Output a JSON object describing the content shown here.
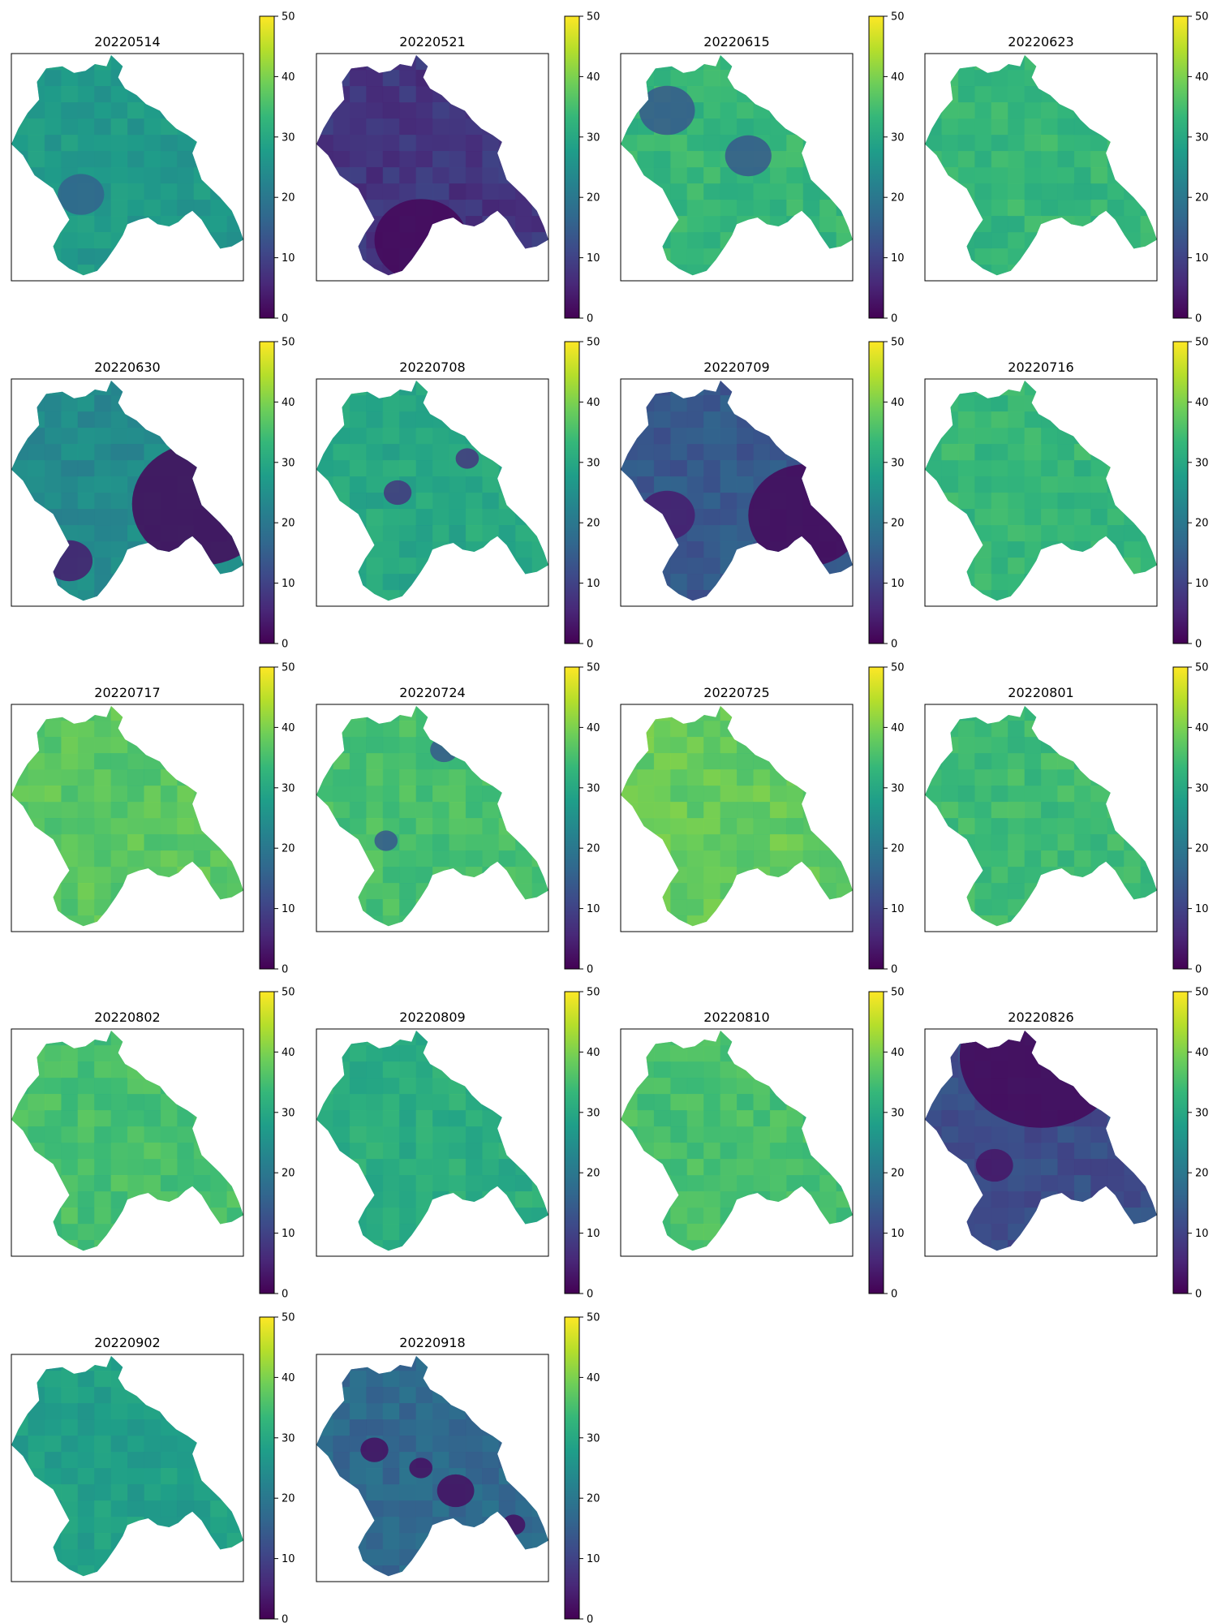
{
  "figure": {
    "colormap": "viridis",
    "colormap_stops": [
      "#440154",
      "#482878",
      "#3e4989",
      "#31688e",
      "#26828e",
      "#1f9e89",
      "#35b779",
      "#6ece58",
      "#b5de2b",
      "#fde725"
    ],
    "panel_frame_color": "#000000"
  },
  "chart_data": [
    {
      "type": "heatmap",
      "title": "20220514",
      "colorbar": {
        "range": [
          0,
          50
        ],
        "ticks": [
          0,
          10,
          20,
          30,
          40,
          50
        ]
      },
      "typical_value": 27,
      "low_zones": [
        [
          0.3,
          0.62,
          0.1,
          16
        ]
      ]
    },
    {
      "type": "heatmap",
      "title": "20220521",
      "colorbar": {
        "range": [
          0,
          50
        ],
        "ticks": [
          0,
          10,
          20,
          30,
          40,
          50
        ]
      },
      "typical_value": 8,
      "low_zones": [
        [
          0.45,
          0.82,
          0.2,
          1
        ]
      ]
    },
    {
      "type": "heatmap",
      "title": "20220615",
      "colorbar": {
        "range": [
          0,
          50
        ],
        "ticks": [
          0,
          10,
          20,
          30,
          40,
          50
        ]
      },
      "typical_value": 33,
      "low_zones": [
        [
          0.55,
          0.45,
          0.1,
          14
        ],
        [
          0.2,
          0.25,
          0.12,
          14
        ]
      ]
    },
    {
      "type": "heatmap",
      "title": "20220623",
      "colorbar": {
        "range": [
          0,
          50
        ],
        "ticks": [
          0,
          10,
          20,
          30,
          40,
          50
        ]
      },
      "typical_value": 33,
      "low_zones": []
    },
    {
      "type": "heatmap",
      "title": "20220630",
      "colorbar": {
        "range": [
          0,
          50
        ],
        "ticks": [
          0,
          10,
          20,
          30,
          40,
          50
        ]
      },
      "typical_value": 24,
      "low_zones": [
        [
          0.82,
          0.55,
          0.3,
          1
        ],
        [
          0.25,
          0.8,
          0.1,
          4
        ]
      ]
    },
    {
      "type": "heatmap",
      "title": "20220708",
      "colorbar": {
        "range": [
          0,
          50
        ],
        "ticks": [
          0,
          10,
          20,
          30,
          40,
          50
        ]
      },
      "typical_value": 30,
      "low_zones": [
        [
          0.35,
          0.5,
          0.06,
          8
        ],
        [
          0.65,
          0.35,
          0.05,
          8
        ]
      ]
    },
    {
      "type": "heatmap",
      "title": "20220709",
      "colorbar": {
        "range": [
          0,
          50
        ],
        "ticks": [
          0,
          10,
          20,
          30,
          40,
          50
        ]
      },
      "typical_value": 14,
      "low_zones": [
        [
          0.8,
          0.6,
          0.25,
          1
        ],
        [
          0.2,
          0.6,
          0.12,
          4
        ]
      ]
    },
    {
      "type": "heatmap",
      "title": "20220716",
      "colorbar": {
        "range": [
          0,
          50
        ],
        "ticks": [
          0,
          10,
          20,
          30,
          40,
          50
        ]
      },
      "typical_value": 33,
      "low_zones": []
    },
    {
      "type": "heatmap",
      "title": "20220717",
      "colorbar": {
        "range": [
          0,
          50
        ],
        "ticks": [
          0,
          10,
          20,
          30,
          40,
          50
        ]
      },
      "typical_value": 37,
      "low_zones": []
    },
    {
      "type": "heatmap",
      "title": "20220724",
      "colorbar": {
        "range": [
          0,
          50
        ],
        "ticks": [
          0,
          10,
          20,
          30,
          40,
          50
        ]
      },
      "typical_value": 35,
      "low_zones": [
        [
          0.55,
          0.2,
          0.06,
          14
        ],
        [
          0.3,
          0.6,
          0.05,
          14
        ]
      ]
    },
    {
      "type": "heatmap",
      "title": "20220725",
      "colorbar": {
        "range": [
          0,
          50
        ],
        "ticks": [
          0,
          10,
          20,
          30,
          40,
          50
        ]
      },
      "typical_value": 38,
      "low_zones": []
    },
    {
      "type": "heatmap",
      "title": "20220801",
      "colorbar": {
        "range": [
          0,
          50
        ],
        "ticks": [
          0,
          10,
          20,
          30,
          40,
          50
        ]
      },
      "typical_value": 34,
      "low_zones": []
    },
    {
      "type": "heatmap",
      "title": "20220802",
      "colorbar": {
        "range": [
          0,
          50
        ],
        "ticks": [
          0,
          10,
          20,
          30,
          40,
          50
        ]
      },
      "typical_value": 35,
      "low_zones": []
    },
    {
      "type": "heatmap",
      "title": "20220809",
      "colorbar": {
        "range": [
          0,
          50
        ],
        "ticks": [
          0,
          10,
          20,
          30,
          40,
          50
        ]
      },
      "typical_value": 31,
      "low_zones": []
    },
    {
      "type": "heatmap",
      "title": "20220810",
      "colorbar": {
        "range": [
          0,
          50
        ],
        "ticks": [
          0,
          10,
          20,
          30,
          40,
          50
        ]
      },
      "typical_value": 35,
      "low_zones": []
    },
    {
      "type": "heatmap",
      "title": "20220826",
      "colorbar": {
        "range": [
          0,
          50
        ],
        "ticks": [
          0,
          10,
          20,
          30,
          40,
          50
        ]
      },
      "typical_value": 12,
      "low_zones": [
        [
          0.5,
          0.12,
          0.35,
          1
        ],
        [
          0.3,
          0.6,
          0.08,
          3
        ]
      ]
    },
    {
      "type": "heatmap",
      "title": "20220902",
      "colorbar": {
        "range": [
          0,
          50
        ],
        "ticks": [
          0,
          10,
          20,
          30,
          40,
          50
        ]
      },
      "typical_value": 28,
      "low_zones": []
    },
    {
      "type": "heatmap",
      "title": "20220918",
      "colorbar": {
        "range": [
          0,
          50
        ],
        "ticks": [
          0,
          10,
          20,
          30,
          40,
          50
        ]
      },
      "typical_value": 17,
      "low_zones": [
        [
          0.25,
          0.42,
          0.06,
          2
        ],
        [
          0.6,
          0.6,
          0.08,
          2
        ],
        [
          0.85,
          0.75,
          0.05,
          2
        ],
        [
          0.45,
          0.5,
          0.05,
          2
        ]
      ]
    }
  ]
}
